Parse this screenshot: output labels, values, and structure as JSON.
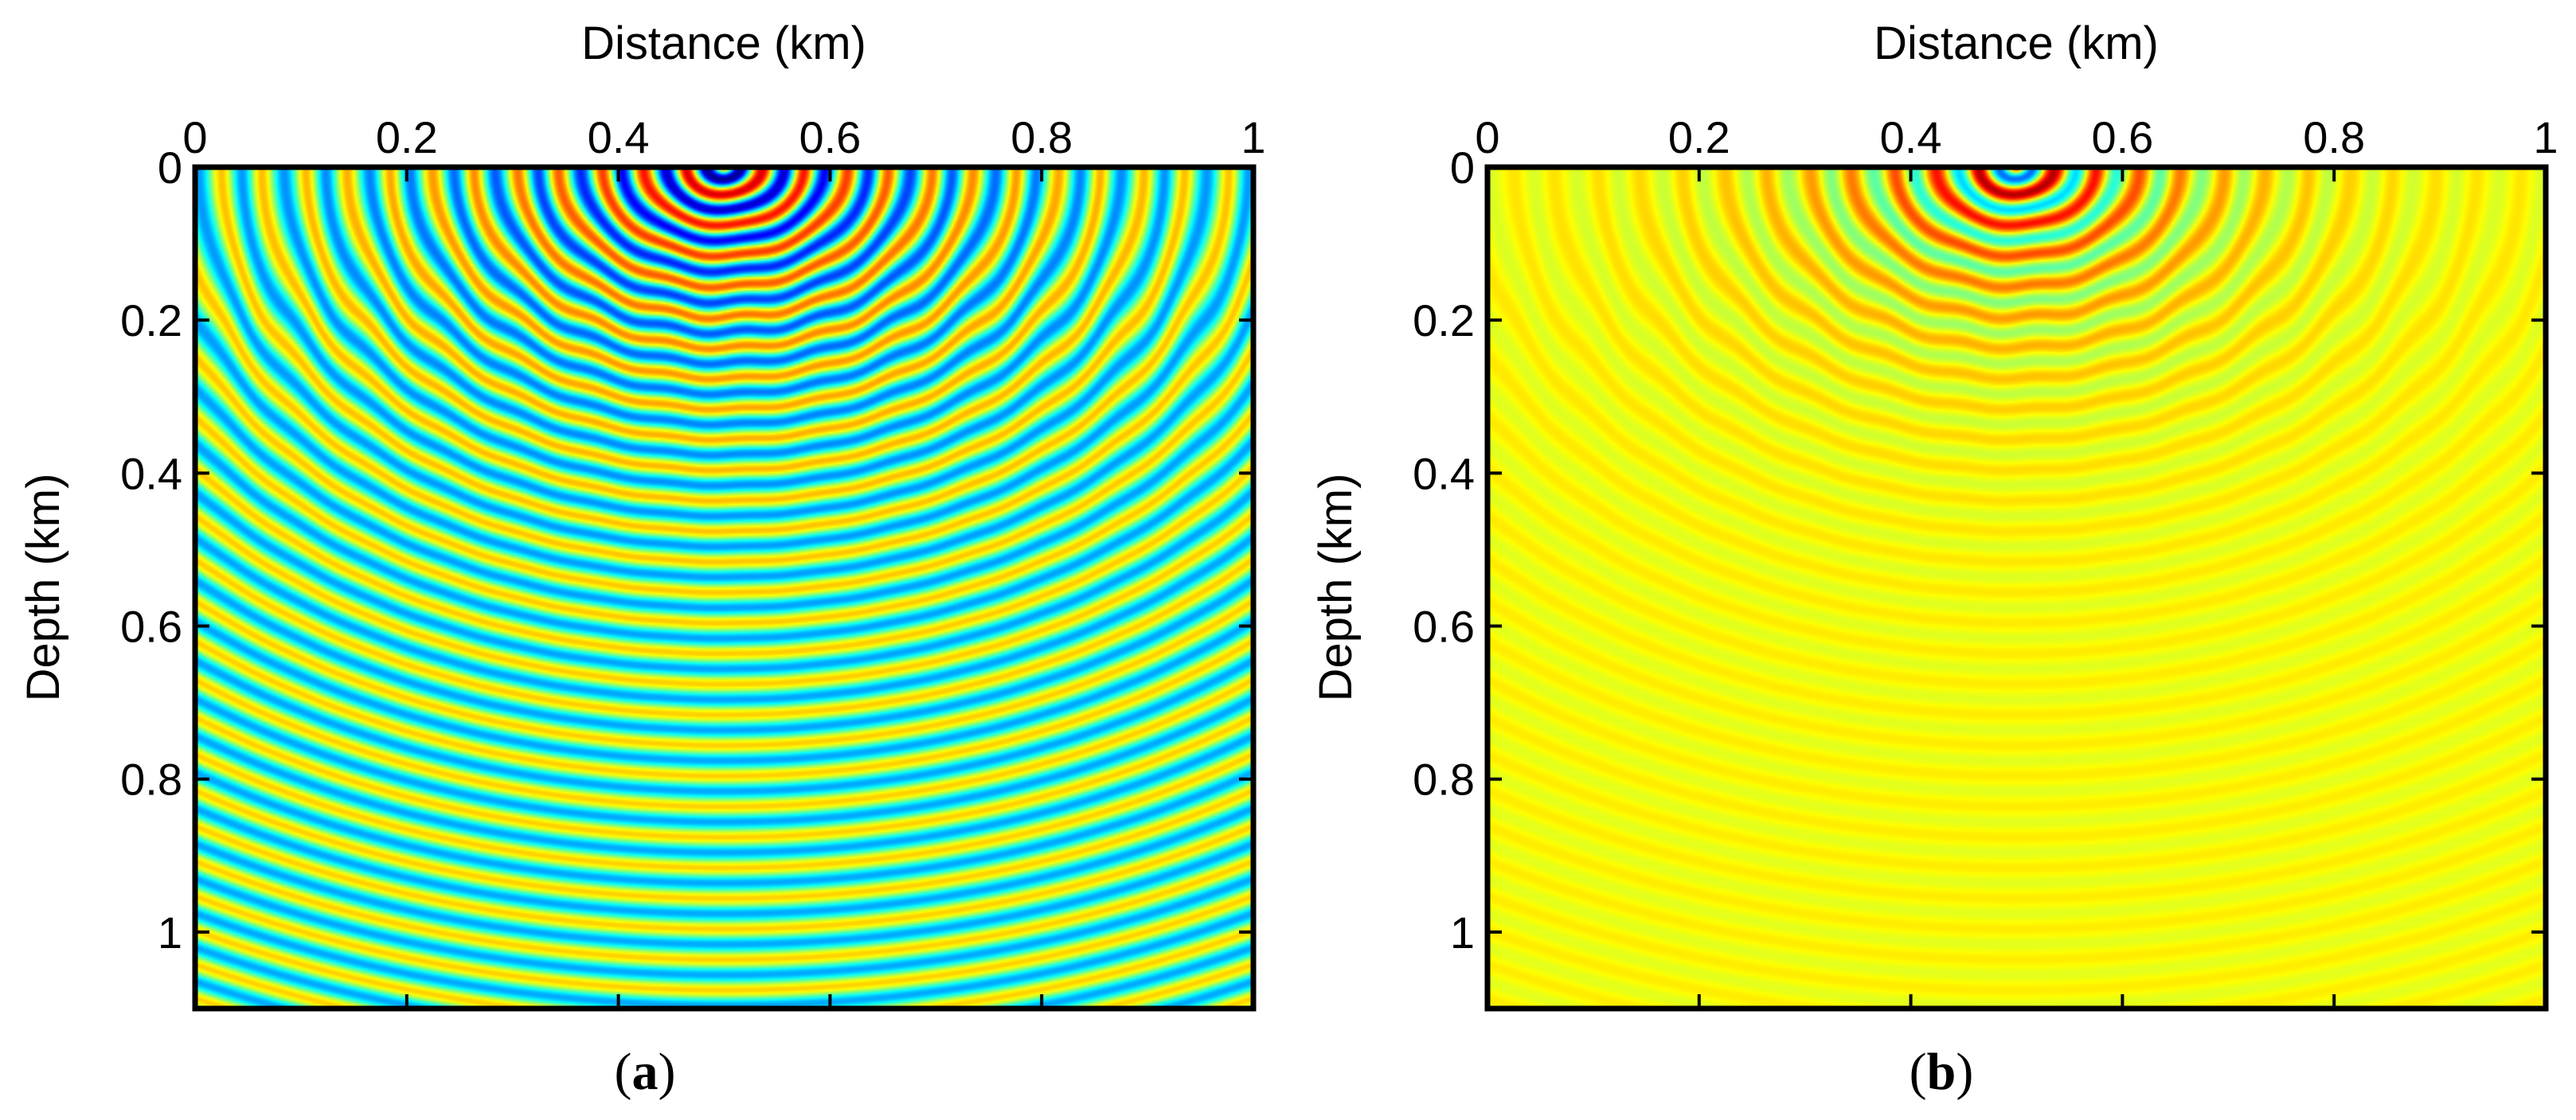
{
  "chart_data": [
    {
      "type": "heatmap",
      "panel_label": "(a)",
      "panel_letter": "a",
      "xlabel": "Distance (km)",
      "ylabel": "Depth (km)",
      "xlim": [
        0,
        1
      ],
      "ylim": [
        0,
        1.1
      ],
      "x_ticks": [
        0,
        0.2,
        0.4,
        0.6,
        0.8,
        1
      ],
      "x_tick_labels": [
        "0",
        "0.2",
        "0.4",
        "0.6",
        "0.8",
        "1"
      ],
      "y_ticks": [
        0,
        0.2,
        0.4,
        0.6,
        0.8,
        1
      ],
      "y_tick_labels": [
        "0",
        "0.2",
        "0.4",
        "0.6",
        "0.8",
        "1"
      ],
      "colormap": "jet",
      "field": {
        "description": "wavefield snapshot",
        "source_x_km": 0.5,
        "source_depth_km": 0.0,
        "wavelength_km": 0.04,
        "amplitude_decay": "weak",
        "background_level": 0.5
      }
    },
    {
      "type": "heatmap",
      "panel_label": "(b)",
      "panel_letter": "b",
      "xlabel": "Distance (km)",
      "ylabel": "Depth (km)",
      "xlim": [
        0,
        1
      ],
      "ylim": [
        0,
        1.1
      ],
      "x_ticks": [
        0,
        0.2,
        0.4,
        0.6,
        0.8,
        1
      ],
      "x_tick_labels": [
        "0",
        "0.2",
        "0.4",
        "0.6",
        "0.8",
        "1"
      ],
      "y_ticks": [
        0,
        0.2,
        0.4,
        0.6,
        0.8,
        1
      ],
      "y_tick_labels": [
        "0",
        "0.2",
        "0.4",
        "0.6",
        "0.8",
        "1"
      ],
      "colormap": "jet",
      "field": {
        "description": "wavefield snapshot",
        "source_x_km": 0.5,
        "source_depth_km": 0.0,
        "wavelength_km": 0.04,
        "amplitude_decay": "strong",
        "background_level": 0.62
      }
    }
  ]
}
